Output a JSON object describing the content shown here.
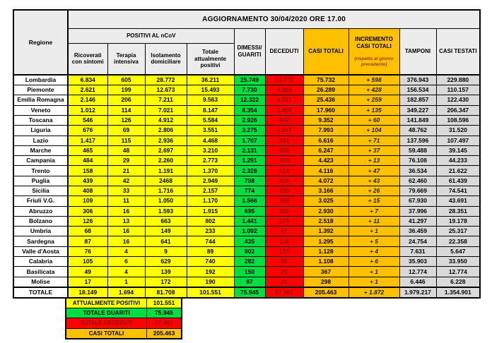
{
  "banner": "AGGIORNAMENTO 30/04/2020 ORE 17.00",
  "colors": {
    "yellow": "#ffff00",
    "green": "#00df3f",
    "red": "#ff0000",
    "orange": "#ffc000",
    "gray": "#d9d9d9",
    "hdr": "#ececec",
    "decred": "#8b1500",
    "subred": "#a04000"
  },
  "table": {
    "col_headers": {
      "regione": "Regione",
      "positivi_group": "POSITIVI AL nCoV",
      "ricoverati": "Ricoverati con sintomi",
      "terapia": "Terapia intensiva",
      "isolamento": "Isolamento domiciliare",
      "totale_positivi": "Totale attualmente positivi",
      "dimessi": "DIMESSI/\nGUARITI",
      "deceduti": "DECEDUTI",
      "casi_totali": "CASI TOTALI",
      "incremento": "INCREMENTO CASI TOTALI",
      "incremento_sub": "(rispetto al giorno precedente)",
      "tamponi": "TAMPONI",
      "casi_testati": "CASI TESTATI"
    },
    "columns": [
      {
        "key": "regione",
        "cls": "c-reg",
        "name": "cell-region"
      },
      {
        "key": "ricoverati",
        "cls": "c-pos",
        "name": "cell-ricoverati"
      },
      {
        "key": "terapia",
        "cls": "c-pos",
        "name": "cell-terapia"
      },
      {
        "key": "isolamento",
        "cls": "c-pos",
        "name": "cell-isolamento"
      },
      {
        "key": "totale_positivi",
        "cls": "c-pos",
        "name": "cell-totale-positivi"
      },
      {
        "key": "dimessi",
        "cls": "c-dim",
        "name": "cell-dimessi-guariti"
      },
      {
        "key": "deceduti",
        "cls": "c-dec",
        "name": "cell-deceduti"
      },
      {
        "key": "casi_totali",
        "cls": "c-cas",
        "name": "cell-casi-totali"
      },
      {
        "key": "incremento",
        "cls": "c-inc",
        "name": "cell-incremento"
      },
      {
        "key": "tamponi",
        "cls": "c-tam",
        "name": "cell-tamponi"
      },
      {
        "key": "casi_testati",
        "cls": "c-tes",
        "name": "cell-casi-testati"
      }
    ],
    "rows": [
      {
        "regione": "Lombardia",
        "ricoverati": "6.834",
        "terapia": "605",
        "isolamento": "28.772",
        "totale_positivi": "36.211",
        "dimessi": "25.749",
        "deceduti": "13.772",
        "casi_totali": "75.732",
        "incremento": "+ 598",
        "tamponi": "376.943",
        "casi_testati": "229.880"
      },
      {
        "regione": "Piemonte",
        "ricoverati": "2.621",
        "terapia": "199",
        "isolamento": "12.673",
        "totale_positivi": "15.493",
        "dimessi": "7.730",
        "deceduti": "3.066",
        "casi_totali": "26.289",
        "incremento": "+ 428",
        "tamponi": "156.534",
        "casi_testati": "110.157"
      },
      {
        "regione": "Emilia Romagna",
        "ricoverati": "2.146",
        "terapia": "206",
        "isolamento": "7.211",
        "totale_positivi": "9.563",
        "dimessi": "12.322",
        "deceduti": "3.551",
        "casi_totali": "25.436",
        "incremento": "+ 259",
        "tamponi": "182.857",
        "casi_testati": "122.430"
      },
      {
        "regione": "Veneto",
        "ricoverati": "1.012",
        "terapia": "114",
        "isolamento": "7.021",
        "totale_positivi": "8.147",
        "dimessi": "8.354",
        "deceduti": "1.459",
        "casi_totali": "17.960",
        "incremento": "+ 135",
        "tamponi": "349.227",
        "casi_testati": "206.347"
      },
      {
        "regione": "Toscana",
        "ricoverati": "546",
        "terapia": "126",
        "isolamento": "4.912",
        "totale_positivi": "5.584",
        "dimessi": "2.926",
        "deceduti": "842",
        "casi_totali": "9.352",
        "incremento": "+ 60",
        "tamponi": "141.849",
        "casi_testati": "108.596"
      },
      {
        "regione": "Liguria",
        "ricoverati": "676",
        "terapia": "69",
        "isolamento": "2.806",
        "totale_positivi": "3.551",
        "dimessi": "3.275",
        "deceduti": "1.167",
        "casi_totali": "7.993",
        "incremento": "+ 104",
        "tamponi": "48.762",
        "casi_testati": "31.520"
      },
      {
        "regione": "Lazio",
        "ricoverati": "1.417",
        "terapia": "115",
        "isolamento": "2.936",
        "totale_positivi": "4.468",
        "dimessi": "1.707",
        "deceduti": "441",
        "casi_totali": "6.616",
        "incremento": "+ 71",
        "tamponi": "137.596",
        "casi_testati": "107.497"
      },
      {
        "regione": "Marche",
        "ricoverati": "465",
        "terapia": "48",
        "isolamento": "2.697",
        "totale_positivi": "3.210",
        "dimessi": "2.131",
        "deceduti": "906",
        "casi_totali": "6.247",
        "incremento": "+ 37",
        "tamponi": "59.488",
        "casi_testati": "39.145"
      },
      {
        "regione": "Campania",
        "ricoverati": "484",
        "terapia": "29",
        "isolamento": "2.260",
        "totale_positivi": "2.773",
        "dimessi": "1.291",
        "deceduti": "359",
        "casi_totali": "4.423",
        "incremento": "+ 13",
        "tamponi": "76.108",
        "casi_testati": "44.233"
      },
      {
        "regione": "Trento",
        "ricoverati": "158",
        "terapia": "21",
        "isolamento": "1.191",
        "totale_positivi": "1.370",
        "dimessi": "2.328",
        "deceduti": "418",
        "casi_totali": "4.116",
        "incremento": "+ 47",
        "tamponi": "36.534",
        "casi_testati": "21.622"
      },
      {
        "regione": "Puglia",
        "ricoverati": "439",
        "terapia": "42",
        "isolamento": "2468",
        "totale_positivi": "2.949",
        "dimessi": "708",
        "deceduti": "415",
        "casi_totali": "4.072",
        "incremento": "+ 43",
        "tamponi": "62.460",
        "casi_testati": "61.439"
      },
      {
        "regione": "Sicilia",
        "ricoverati": "408",
        "terapia": "33",
        "isolamento": "1.716",
        "totale_positivi": "2.157",
        "dimessi": "774",
        "deceduti": "235",
        "casi_totali": "3.166",
        "incremento": "+ 26",
        "tamponi": "79.669",
        "casi_testati": "74.541"
      },
      {
        "regione": "Friuli V.G.",
        "ricoverati": "109",
        "terapia": "11",
        "isolamento": "1.050",
        "totale_positivi": "1.170",
        "dimessi": "1.566",
        "deceduti": "289",
        "casi_totali": "3.025",
        "incremento": "+ 15",
        "tamponi": "67.930",
        "casi_testati": "43.691"
      },
      {
        "regione": "Abruzzo",
        "ricoverati": "306",
        "terapia": "16",
        "isolamento": "1.593",
        "totale_positivi": "1.915",
        "dimessi": "695",
        "deceduti": "320",
        "casi_totali": "2.930",
        "incremento": "+ 7",
        "tamponi": "37.996",
        "casi_testati": "28.351"
      },
      {
        "regione": "Bolzano",
        "ricoverati": "126",
        "terapia": "13",
        "isolamento": "663",
        "totale_positivi": "802",
        "dimessi": "1.441",
        "deceduti": "275",
        "casi_totali": "2.518",
        "incremento": "+ 11",
        "tamponi": "41.297",
        "casi_testati": "19.178"
      },
      {
        "regione": "Umbria",
        "ricoverati": "68",
        "terapia": "16",
        "isolamento": "149",
        "totale_positivi": "233",
        "dimessi": "1.092",
        "deceduti": "67",
        "casi_totali": "1.392",
        "incremento": "+ 1",
        "tamponi": "36.459",
        "casi_testati": "25.317"
      },
      {
        "regione": "Sardegna",
        "ricoverati": "87",
        "terapia": "16",
        "isolamento": "641",
        "totale_positivi": "744",
        "dimessi": "435",
        "deceduti": "116",
        "casi_totali": "1.295",
        "incremento": "+ 5",
        "tamponi": "24.754",
        "casi_testati": "22.358"
      },
      {
        "regione": "Valle d'Aosta",
        "ricoverati": "76",
        "terapia": "4",
        "isolamento": "9",
        "totale_positivi": "89",
        "dimessi": "902",
        "deceduti": "137",
        "casi_totali": "1.128",
        "incremento": "+ 4",
        "tamponi": "7.631",
        "casi_testati": "5.647"
      },
      {
        "regione": "Calabria",
        "ricoverati": "105",
        "terapia": "6",
        "isolamento": "629",
        "totale_positivi": "740",
        "dimessi": "282",
        "deceduti": "86",
        "casi_totali": "1.108",
        "incremento": "+ 6",
        "tamponi": "35.903",
        "casi_testati": "33.950"
      },
      {
        "regione": "Basilicata",
        "ricoverati": "49",
        "terapia": "4",
        "isolamento": "139",
        "totale_positivi": "192",
        "dimessi": "150",
        "deceduti": "25",
        "casi_totali": "367",
        "incremento": "+ 1",
        "tamponi": "12.774",
        "casi_testati": "12.774"
      },
      {
        "regione": "Molise",
        "ricoverati": "17",
        "terapia": "1",
        "isolamento": "172",
        "totale_positivi": "190",
        "dimessi": "87",
        "deceduti": "21",
        "casi_totali": "298",
        "incremento": "+ 1",
        "tamponi": "6.446",
        "casi_testati": "6.228"
      }
    ],
    "totale": {
      "regione": "TOTALE",
      "ricoverati": "18.149",
      "terapia": "1.694",
      "isolamento": "81.708",
      "totale_positivi": "101.551",
      "dimessi": "75.945",
      "deceduti": "27.967",
      "casi_totali": "205.463",
      "incremento": "+ 1.872",
      "tamponi": "1.979.217",
      "casi_testati": "1.354.901"
    }
  },
  "summary": {
    "rows": [
      {
        "label": "ATTUALMENTE POSITIVI",
        "value": "101.551",
        "color": "yellow"
      },
      {
        "label": "TOTALE GUARITI",
        "value": "75.945",
        "color": "green"
      },
      {
        "label": "TOTALE DECEDUTI",
        "value": "27.967",
        "color": "red"
      },
      {
        "label": "CASI TOTALI",
        "value": "205.463",
        "color": "orange"
      }
    ]
  }
}
